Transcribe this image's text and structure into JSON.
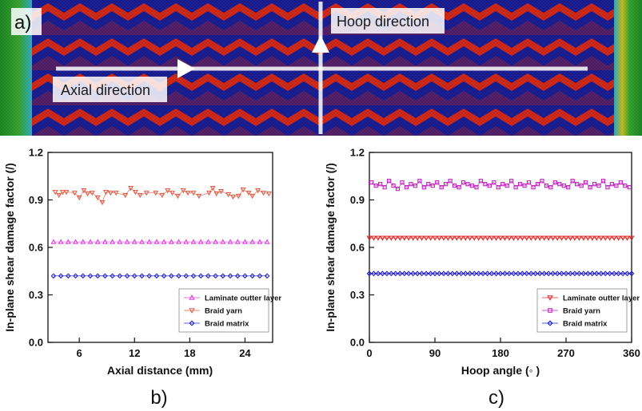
{
  "panel_a": {
    "label": "a)",
    "axial_label": "Axial direction",
    "hoop_label": "Hoop direction",
    "colors": {
      "background": "#1b1f96",
      "stripe": "#d42a1a",
      "end_green": "#2f9a2a",
      "arrow": "#ffffff"
    }
  },
  "chart_data": [
    {
      "type": "scatter",
      "panel_label": "b)",
      "xlabel": "Axial distance (mm)",
      "ylabel": "In-plane shear damage factor (/)",
      "xlim": [
        2.6,
        27.0
      ],
      "ylim": [
        0.0,
        1.2
      ],
      "xticks": [
        6,
        12,
        18,
        24
      ],
      "yticks": [
        0.0,
        0.3,
        0.6,
        0.9,
        1.2
      ],
      "series": [
        {
          "name": "Laminate outter layer",
          "marker": "triangle-up",
          "color": "#e040e0",
          "x": [
            3.2,
            4.0,
            4.8,
            5.6,
            6.4,
            7.2,
            8.0,
            8.8,
            9.6,
            10.4,
            11.2,
            12.0,
            12.8,
            13.6,
            14.4,
            15.2,
            16.0,
            16.8,
            17.6,
            18.4,
            19.2,
            20.0,
            20.8,
            21.6,
            22.4,
            23.2,
            24.0,
            24.8,
            25.6,
            26.4
          ],
          "y": [
            0.635,
            0.635,
            0.635,
            0.635,
            0.635,
            0.635,
            0.635,
            0.635,
            0.635,
            0.635,
            0.635,
            0.635,
            0.635,
            0.635,
            0.635,
            0.635,
            0.635,
            0.635,
            0.635,
            0.635,
            0.635,
            0.635,
            0.635,
            0.635,
            0.635,
            0.635,
            0.635,
            0.635,
            0.635,
            0.635
          ]
        },
        {
          "name": "Braid yarn",
          "marker": "triangle-down",
          "color": "#e0604a",
          "x": [
            3.4,
            3.8,
            4.2,
            4.6,
            5.5,
            6.0,
            6.5,
            6.9,
            7.4,
            8.0,
            8.5,
            8.9,
            9.4,
            10.0,
            11.0,
            11.6,
            12.1,
            12.6,
            13.3,
            14.3,
            15.0,
            15.6,
            16.1,
            16.7,
            17.3,
            17.8,
            18.4,
            19.0,
            20.1,
            20.5,
            20.9,
            21.4,
            22.2,
            22.7,
            23.3,
            23.8,
            24.4,
            24.8,
            25.4,
            26.0,
            26.6
          ],
          "y": [
            0.95,
            0.93,
            0.95,
            0.95,
            0.945,
            0.915,
            0.96,
            0.94,
            0.945,
            0.915,
            0.885,
            0.95,
            0.945,
            0.945,
            0.93,
            0.975,
            0.95,
            0.93,
            0.945,
            0.945,
            0.93,
            0.96,
            0.945,
            0.925,
            0.96,
            0.945,
            0.945,
            0.925,
            0.945,
            0.975,
            0.94,
            0.955,
            0.935,
            0.92,
            0.925,
            0.965,
            0.945,
            0.925,
            0.96,
            0.945,
            0.94
          ]
        },
        {
          "name": "Braid matrix",
          "marker": "diamond",
          "color": "#2a2ad0",
          "x": [
            3.2,
            4.0,
            4.8,
            5.6,
            6.4,
            7.2,
            8.0,
            8.8,
            9.6,
            10.4,
            11.2,
            12.0,
            12.8,
            13.6,
            14.4,
            15.2,
            16.0,
            16.8,
            17.6,
            18.4,
            19.2,
            20.0,
            20.8,
            21.6,
            22.4,
            23.2,
            24.0,
            24.8,
            25.6,
            26.4
          ],
          "y": [
            0.42,
            0.42,
            0.42,
            0.42,
            0.42,
            0.42,
            0.42,
            0.42,
            0.42,
            0.42,
            0.42,
            0.42,
            0.42,
            0.42,
            0.42,
            0.42,
            0.42,
            0.42,
            0.42,
            0.42,
            0.42,
            0.42,
            0.42,
            0.42,
            0.42,
            0.42,
            0.42,
            0.42,
            0.42,
            0.42
          ]
        }
      ]
    },
    {
      "type": "scatter",
      "panel_label": "c)",
      "xlabel": "Hoop angle (◦ )",
      "ylabel": "In-plane shear damage factor (/)",
      "xlim": [
        0,
        360
      ],
      "ylim": [
        0.0,
        1.2
      ],
      "xticks": [
        0,
        90,
        180,
        270,
        360
      ],
      "yticks": [
        0.0,
        0.3,
        0.6,
        0.9,
        1.2
      ],
      "series": [
        {
          "name": "Laminate outter layer",
          "marker": "triangle-down",
          "color": "#e02a2a",
          "x": [
            0,
            6,
            12,
            18,
            24,
            30,
            36,
            42,
            48,
            54,
            60,
            66,
            72,
            78,
            84,
            90,
            96,
            102,
            108,
            114,
            120,
            126,
            132,
            138,
            144,
            150,
            156,
            162,
            168,
            174,
            180,
            186,
            192,
            198,
            204,
            210,
            216,
            222,
            228,
            234,
            240,
            246,
            252,
            258,
            264,
            270,
            276,
            282,
            288,
            294,
            300,
            306,
            312,
            318,
            324,
            330,
            336,
            342,
            348,
            354,
            360
          ],
          "y": [
            0.66,
            0.66,
            0.66,
            0.66,
            0.66,
            0.66,
            0.66,
            0.66,
            0.66,
            0.66,
            0.66,
            0.66,
            0.66,
            0.66,
            0.66,
            0.66,
            0.66,
            0.66,
            0.66,
            0.66,
            0.66,
            0.66,
            0.66,
            0.66,
            0.66,
            0.66,
            0.66,
            0.66,
            0.66,
            0.66,
            0.66,
            0.66,
            0.66,
            0.66,
            0.66,
            0.66,
            0.66,
            0.66,
            0.66,
            0.66,
            0.66,
            0.66,
            0.66,
            0.66,
            0.66,
            0.66,
            0.66,
            0.66,
            0.66,
            0.66,
            0.66,
            0.66,
            0.66,
            0.66,
            0.66,
            0.66,
            0.66,
            0.66,
            0.66,
            0.66,
            0.66
          ]
        },
        {
          "name": "Braid yarn",
          "marker": "square",
          "color": "#c020c0",
          "x": [
            3,
            9,
            15,
            21,
            27,
            33,
            39,
            45,
            51,
            57,
            63,
            69,
            75,
            81,
            87,
            93,
            99,
            105,
            111,
            117,
            123,
            129,
            135,
            141,
            147,
            153,
            159,
            165,
            171,
            177,
            183,
            189,
            195,
            201,
            207,
            213,
            219,
            225,
            231,
            237,
            243,
            249,
            255,
            261,
            267,
            273,
            279,
            285,
            291,
            297,
            303,
            309,
            315,
            321,
            327,
            333,
            339,
            345,
            351,
            357
          ],
          "y": [
            1.01,
            0.99,
            1.0,
            0.98,
            1.02,
            0.99,
            0.97,
            1.01,
            0.98,
            1.0,
            0.99,
            1.02,
            0.98,
            1.0,
            0.99,
            1.01,
            0.98,
            1.0,
            1.02,
            0.99,
            0.98,
            1.01,
            1.0,
            0.99,
            0.98,
            1.02,
            1.0,
            0.99,
            1.01,
            0.98,
            1.0,
            0.99,
            1.02,
            0.98,
            1.0,
            0.99,
            1.01,
            0.98,
            1.0,
            1.02,
            0.99,
            0.98,
            1.01,
            1.0,
            0.99,
            0.98,
            1.02,
            1.0,
            0.99,
            1.01,
            0.98,
            1.0,
            0.99,
            1.02,
            0.98,
            1.0,
            0.99,
            1.01,
            0.99,
            0.98
          ]
        },
        {
          "name": "Braid matrix",
          "marker": "diamond",
          "color": "#1a1ad0",
          "x": [
            0,
            6,
            12,
            18,
            24,
            30,
            36,
            42,
            48,
            54,
            60,
            66,
            72,
            78,
            84,
            90,
            96,
            102,
            108,
            114,
            120,
            126,
            132,
            138,
            144,
            150,
            156,
            162,
            168,
            174,
            180,
            186,
            192,
            198,
            204,
            210,
            216,
            222,
            228,
            234,
            240,
            246,
            252,
            258,
            264,
            270,
            276,
            282,
            288,
            294,
            300,
            306,
            312,
            318,
            324,
            330,
            336,
            342,
            348,
            354,
            360
          ],
          "y": [
            0.435,
            0.435,
            0.435,
            0.435,
            0.435,
            0.435,
            0.435,
            0.435,
            0.435,
            0.435,
            0.435,
            0.435,
            0.435,
            0.435,
            0.435,
            0.435,
            0.435,
            0.435,
            0.435,
            0.435,
            0.435,
            0.435,
            0.435,
            0.435,
            0.435,
            0.435,
            0.435,
            0.435,
            0.435,
            0.435,
            0.435,
            0.435,
            0.435,
            0.435,
            0.435,
            0.435,
            0.435,
            0.435,
            0.435,
            0.435,
            0.435,
            0.435,
            0.435,
            0.435,
            0.435,
            0.435,
            0.435,
            0.435,
            0.435,
            0.435,
            0.435,
            0.435,
            0.435,
            0.435,
            0.435,
            0.435,
            0.435,
            0.435,
            0.435,
            0.435,
            0.435
          ]
        }
      ]
    }
  ]
}
